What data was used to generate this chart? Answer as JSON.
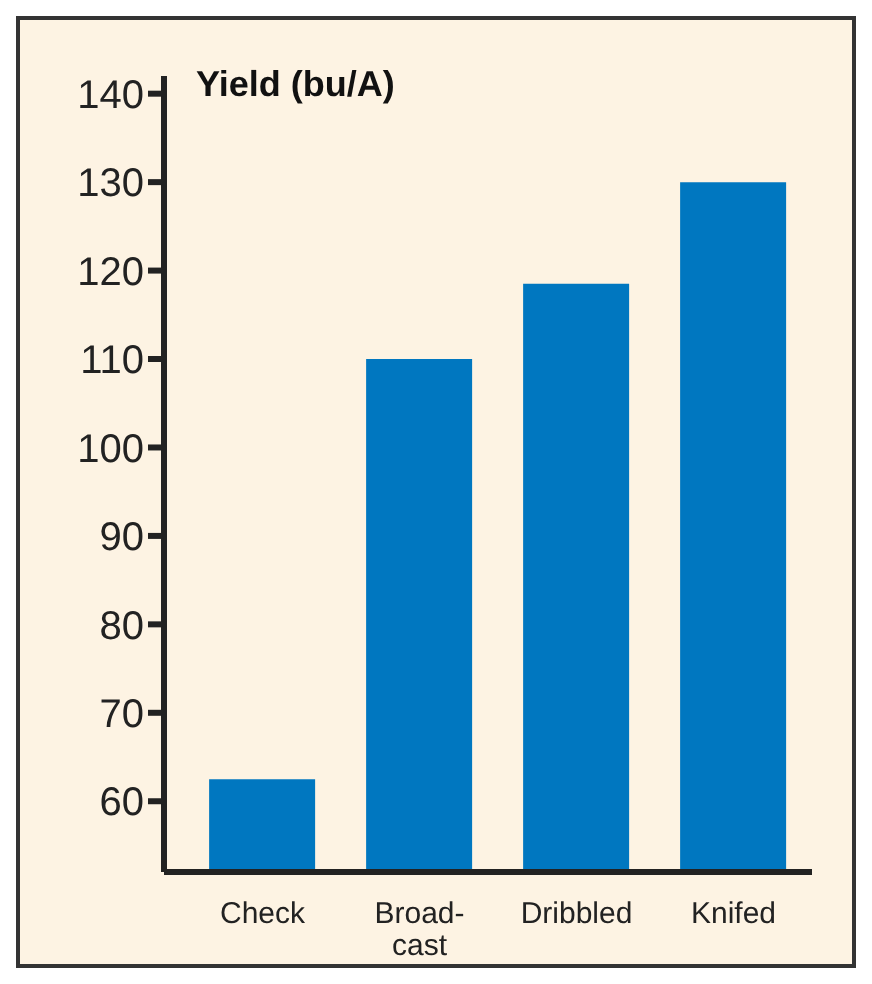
{
  "chart_data": {
    "type": "bar",
    "title": "Yield (bu/A)",
    "categories": [
      "Check",
      "Broad-\ncast",
      "Dribbled",
      "Knifed"
    ],
    "values": [
      62.5,
      110,
      118.5,
      130
    ],
    "color": "#0077c0",
    "ylim": [
      52,
      142
    ],
    "yticks": [
      60,
      70,
      80,
      90,
      100,
      110,
      120,
      130,
      140
    ],
    "grid": false
  }
}
